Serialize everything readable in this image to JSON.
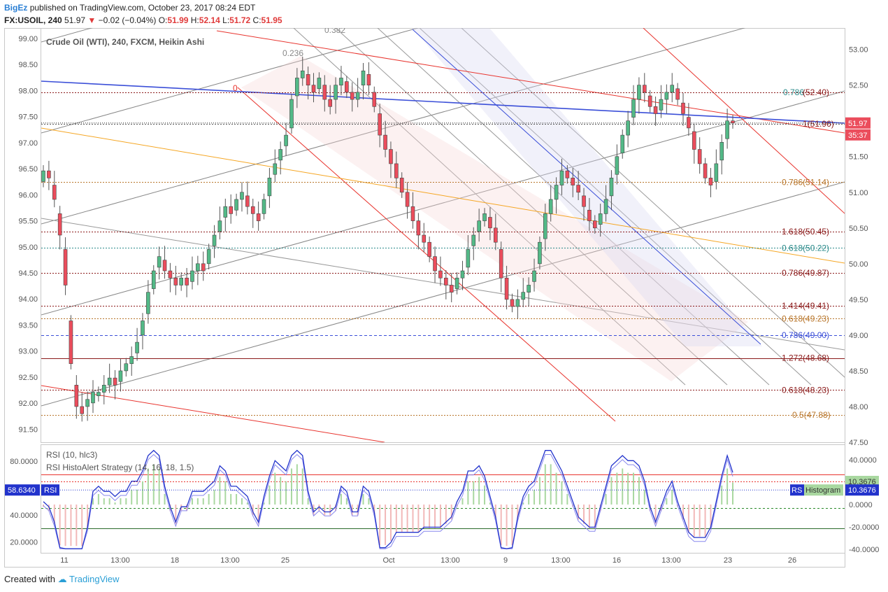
{
  "header": {
    "user": "BigEz",
    "published_text": "published on TradingView.com, October 23, 2017 08:24 EDT",
    "symbol": "FX:USOIL, 240",
    "last": "51.97",
    "change": "−0.02 (−0.04%)",
    "o_label": "O:",
    "o_value": "51.99",
    "h_label": "H:",
    "h_value": "52.14",
    "l_label": "L:",
    "l_value": "51.72",
    "c_label": "C:",
    "c_value": "51.95"
  },
  "legend": {
    "main": "Crude Oil (WTI), 240, FXCM, Heikin Ashi",
    "rsi": "RSI (10, hlc3)",
    "histo": "RSI HistoAlert Strategy (14, 16, 18, 1.5)"
  },
  "colors": {
    "up": "#53b987",
    "down": "#eb4d5c",
    "blue_line": "#3b4fd8",
    "orange_line": "#f5a623",
    "red_line": "#e8342e",
    "fib_maroon": "#8b1a1a",
    "rsi_line": "#2233cc"
  },
  "chart_data": [
    {
      "type": "candlestick",
      "title": "Crude Oil (WTI), 240, FXCM, Heikin Ashi",
      "left_axis": {
        "ticks": [
          "99.00",
          "98.50",
          "98.00",
          "97.50",
          "97.00",
          "96.50",
          "96.00",
          "95.50",
          "95.00",
          "94.50",
          "94.00",
          "93.50",
          "93.00",
          "92.50",
          "92.00",
          "91.50"
        ],
        "range": [
          91.25,
          99.2
        ]
      },
      "right_axis": {
        "ticks": [
          "53.00",
          "52.50",
          "52.00",
          "51.50",
          "51.00",
          "50.50",
          "50.00",
          "49.50",
          "49.00",
          "48.50",
          "48.00",
          "47.50"
        ],
        "range": [
          47.5,
          53.3
        ]
      },
      "x_ticks": [
        "11",
        "13:00",
        "18",
        "13:00",
        "25",
        "Oct",
        "13:00",
        "9",
        "13:00",
        "16",
        "13:00",
        "23",
        "26"
      ],
      "price_label": "51.97",
      "countdown_label": "35:37",
      "fib_left_labels": [
        "0.236",
        "0.382",
        "0"
      ],
      "fib_right_labels": [
        "0.786",
        "(52.40)",
        "1(51.96)",
        "0.786(51.14)",
        "1.618(50.45)",
        "0.618(50.22)",
        "0.786(49.87)",
        "1.414(49.41)",
        "0.618(49.23)",
        "0.786(49.00)",
        "1.272(48.68)",
        "0.618(48.23)",
        "0.5(47.88)"
      ],
      "close": [
        51.3,
        51.2,
        50.9,
        50.4,
        49.7,
        48.6,
        48.0,
        47.9,
        48.1,
        48.2,
        48.2,
        48.3,
        48.4,
        48.3,
        48.5,
        48.6,
        48.7,
        48.9,
        49.2,
        49.6,
        49.9,
        50.1,
        49.9,
        49.8,
        49.7,
        49.8,
        49.7,
        49.9,
        50.0,
        49.9,
        50.2,
        50.4,
        50.6,
        50.8,
        50.7,
        50.9,
        51.0,
        50.8,
        50.7,
        50.6,
        50.9,
        51.2,
        51.4,
        51.6,
        51.8,
        52.3,
        52.6,
        52.7,
        52.5,
        52.4,
        52.6,
        52.3,
        52.2,
        52.5,
        52.6,
        52.4,
        52.3,
        52.4,
        52.7,
        52.5,
        52.2,
        51.8,
        51.6,
        51.4,
        51.2,
        51.0,
        50.8,
        50.6,
        50.4,
        50.3,
        50.1,
        49.9,
        49.8,
        49.7,
        49.6,
        49.8,
        49.9,
        50.2,
        50.4,
        50.6,
        50.7,
        50.5,
        50.3,
        49.8,
        49.5,
        49.4,
        49.5,
        49.6,
        49.7,
        49.9,
        50.3,
        50.7,
        50.9,
        51.1,
        51.3,
        51.2,
        51.1,
        51.0,
        50.8,
        50.6,
        50.5,
        50.7,
        50.9,
        51.2,
        51.5,
        51.8,
        52.0,
        52.3,
        52.5,
        52.4,
        52.2,
        52.1,
        52.3,
        52.4,
        52.5,
        52.3,
        52.1,
        51.9,
        51.6,
        51.4,
        51.2,
        51.1,
        51.4,
        51.7,
        52.0,
        51.97
      ],
      "open_offset": [
        0.15,
        -0.1,
        -0.2,
        -0.3,
        -0.5,
        -0.6,
        -0.3,
        -0.1,
        0.1,
        0.15,
        0.05,
        0.1,
        0.1,
        -0.1,
        0.15,
        0.1,
        0.1,
        0.15,
        0.2,
        0.3,
        0.25,
        0.15,
        -0.15,
        -0.1,
        -0.1,
        0.1,
        -0.1,
        0.15,
        0.1,
        -0.1,
        0.2,
        0.15,
        0.15,
        0.15,
        -0.1,
        0.15,
        0.1,
        -0.15,
        -0.1,
        -0.1,
        0.2,
        0.25,
        0.15,
        0.15,
        0.15,
        0.4,
        0.25,
        0.1,
        -0.15,
        -0.1,
        0.15,
        -0.2,
        -0.1,
        0.2,
        0.1,
        -0.15,
        -0.1,
        0.1,
        0.2,
        -0.15,
        -0.2,
        -0.3,
        -0.2,
        -0.2,
        -0.2,
        -0.2,
        -0.2,
        -0.2,
        -0.2,
        -0.1,
        -0.2,
        -0.2,
        -0.1,
        -0.1,
        -0.1,
        0.15,
        0.1,
        0.25,
        0.15,
        0.15,
        0.1,
        -0.15,
        -0.2,
        -0.4,
        -0.3,
        -0.1,
        0.1,
        0.1,
        0.1,
        0.15,
        0.3,
        0.35,
        0.2,
        0.2,
        0.2,
        -0.1,
        -0.1,
        -0.1,
        -0.15,
        -0.15,
        -0.1,
        0.15,
        0.2,
        0.25,
        0.25,
        0.25,
        0.2,
        0.25,
        0.2,
        -0.1,
        -0.15,
        -0.1,
        0.15,
        0.1,
        0.1,
        -0.15,
        -0.15,
        -0.15,
        -0.25,
        -0.2,
        -0.2,
        -0.1,
        0.25,
        0.25,
        0.25,
        -0.03
      ]
    },
    {
      "type": "line",
      "title": "RSI (10, hlc3)",
      "left_axis": {
        "ticks": [
          "80.0000",
          "60.0000",
          "40.0000",
          "20.0000"
        ],
        "range": [
          12,
          92
        ]
      },
      "right_axis": {
        "ticks": [
          "40.0000",
          "20.0000",
          "0.0000",
          "-20.0000",
          "-40.0000"
        ]
      },
      "rsi_value_label": "58.6340",
      "rsi_tag": "RSI",
      "histogram_value": "10.3676",
      "histogram_tag": "Histogram",
      "rsi_short_tag": "RS",
      "levels": [
        70,
        65,
        45,
        30
      ]
    }
  ],
  "footer": {
    "created_with": "Created with",
    "brand": "TradingView"
  }
}
